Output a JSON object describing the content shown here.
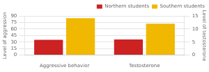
{
  "chart_data": {
    "type": "bar",
    "categories": [
      "Aggressive behavior",
      "Testosterone"
    ],
    "series": [
      {
        "name": "Northern students",
        "color": "#cc2222",
        "values": [
          35,
          36
        ]
      },
      {
        "name": "Southern students",
        "color": "#f0b800",
        "values": [
          85,
          72
        ]
      }
    ],
    "ylabel": "Level of aggression",
    "y2label": "Level of testosterone",
    "ylim": [
      0,
      90
    ],
    "yticks": [
      0,
      15,
      30,
      45,
      60,
      75,
      90
    ],
    "y2lim": [
      0,
      15
    ],
    "y2ticks": [
      0,
      5,
      10,
      15
    ],
    "grid": true,
    "legend": "upper right"
  }
}
